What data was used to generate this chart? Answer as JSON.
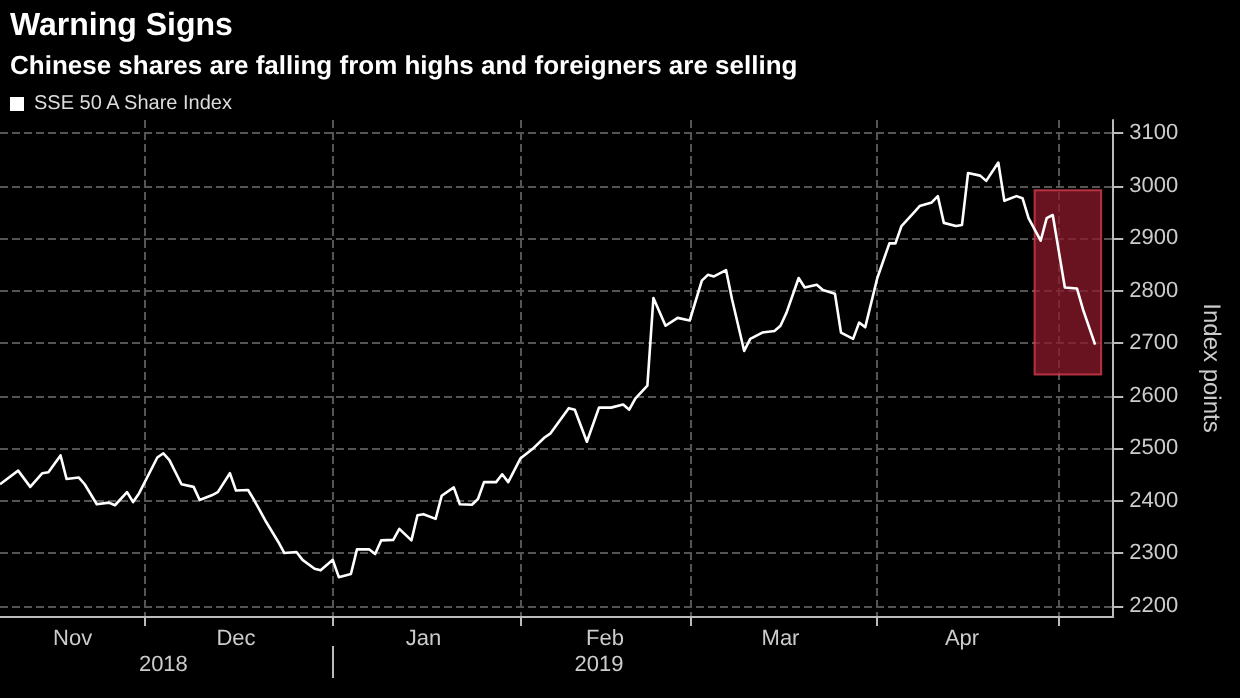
{
  "chart_data": {
    "type": "line",
    "title": "Warning Signs",
    "subtitle": "Chinese shares are falling from highs and foreigners are selling",
    "ylabel": "Index points",
    "x": [
      "2018-11-07",
      "2018-11-10",
      "2018-11-12",
      "2018-11-14",
      "2018-11-15",
      "2018-11-17",
      "2018-11-18",
      "2018-11-20",
      "2018-11-21",
      "2018-11-23",
      "2018-11-25",
      "2018-11-26",
      "2018-11-28",
      "2018-11-29",
      "2018-11-30",
      "2018-12-03",
      "2018-12-04",
      "2018-12-05",
      "2018-12-07",
      "2018-12-09",
      "2018-12-10",
      "2018-12-12",
      "2018-12-13",
      "2018-12-15",
      "2018-12-16",
      "2018-12-18",
      "2018-12-19",
      "2018-12-21",
      "2018-12-23",
      "2018-12-24",
      "2018-12-26",
      "2018-12-27",
      "2018-12-29",
      "2018-12-30",
      "2019-01-01",
      "2019-01-02",
      "2019-01-04",
      "2019-01-05",
      "2019-01-07",
      "2019-01-08",
      "2019-01-09",
      "2019-01-11",
      "2019-01-12",
      "2019-01-14",
      "2019-01-15",
      "2019-01-16",
      "2019-01-18",
      "2019-01-19",
      "2019-01-21",
      "2019-01-22",
      "2019-01-24",
      "2019-01-25",
      "2019-01-26",
      "2019-01-28",
      "2019-01-29",
      "2019-01-30",
      "2019-02-01",
      "2019-02-03",
      "2019-02-05",
      "2019-02-06",
      "2019-02-09",
      "2019-02-10",
      "2019-02-12",
      "2019-02-14",
      "2019-02-16",
      "2019-02-18",
      "2019-02-19",
      "2019-02-20",
      "2019-02-22",
      "2019-02-23",
      "2019-02-25",
      "2019-02-27",
      "2019-03-01",
      "2019-03-03",
      "2019-03-04",
      "2019-03-05",
      "2019-03-07",
      "2019-03-08",
      "2019-03-10",
      "2019-03-11",
      "2019-03-13",
      "2019-03-15",
      "2019-03-16",
      "2019-03-17",
      "2019-03-19",
      "2019-03-20",
      "2019-03-22",
      "2019-03-23",
      "2019-03-25",
      "2019-03-26",
      "2019-03-28",
      "2019-03-29",
      "2019-03-30",
      "2019-04-01",
      "2019-04-03",
      "2019-04-04",
      "2019-04-05",
      "2019-04-07",
      "2019-04-08",
      "2019-04-10",
      "2019-04-11",
      "2019-04-12",
      "2019-04-14",
      "2019-04-15",
      "2019-04-16",
      "2019-04-18",
      "2019-04-19",
      "2019-04-21",
      "2019-04-22",
      "2019-04-24",
      "2019-04-25",
      "2019-04-26",
      "2019-04-28",
      "2019-04-29",
      "2019-04-30",
      "2019-05-02",
      "2019-05-04",
      "2019-05-05",
      "2019-05-07"
    ],
    "series": [
      {
        "name": "SSE 50 A Share Index",
        "color": "#ffffff",
        "values": [
          2431,
          2457,
          2426,
          2452,
          2454,
          2486,
          2441,
          2444,
          2431,
          2393,
          2396,
          2391,
          2416,
          2397,
          2414,
          2482,
          2490,
          2477,
          2431,
          2426,
          2401,
          2410,
          2416,
          2452,
          2419,
          2420,
          2401,
          2359,
          2321,
          2300,
          2302,
          2287,
          2270,
          2267,
          2287,
          2254,
          2260,
          2307,
          2307,
          2298,
          2324,
          2325,
          2346,
          2324,
          2372,
          2374,
          2365,
          2409,
          2425,
          2393,
          2392,
          2403,
          2435,
          2435,
          2450,
          2435,
          2480,
          2498,
          2520,
          2528,
          2576,
          2573,
          2512,
          2577,
          2577,
          2583,
          2573,
          2594,
          2619,
          2786,
          2733,
          2748,
          2743,
          2819,
          2830,
          2827,
          2839,
          2783,
          2685,
          2708,
          2720,
          2723,
          2733,
          2758,
          2824,
          2806,
          2811,
          2801,
          2794,
          2720,
          2708,
          2739,
          2730,
          2824,
          2890,
          2890,
          2923,
          2948,
          2961,
          2968,
          2980,
          2929,
          2923,
          2925,
          3024,
          3019,
          3009,
          3044,
          2971,
          2980,
          2976,
          2938,
          2895,
          2938,
          2944,
          2806,
          2804,
          2764,
          2697
        ]
      }
    ],
    "xlim": [
      "2018-11-07",
      "2019-05-10"
    ],
    "xticks": [
      {
        "value": "2018-11-19",
        "label": "Nov"
      },
      {
        "value": "2018-12-01",
        "label": null
      },
      {
        "value": "2018-12-16",
        "label": "Dec"
      },
      {
        "value": "2019-01-01",
        "label": null
      },
      {
        "value": "2019-01-16",
        "label": "Jan"
      },
      {
        "value": "2019-02-01",
        "label": null
      },
      {
        "value": "2019-02-15",
        "label": "Feb"
      },
      {
        "value": "2019-03-01",
        "label": null
      },
      {
        "value": "2019-03-16",
        "label": "Mar"
      },
      {
        "value": "2019-04-01",
        "label": null
      },
      {
        "value": "2019-04-15",
        "label": "Apr"
      },
      {
        "value": "2019-05-01",
        "label": null
      }
    ],
    "x2lim": [
      "2018-11-07",
      "2019-05-10"
    ],
    "x2ticks": [
      {
        "value": "2018-12-04",
        "label": "2018"
      },
      {
        "value": "2019-01-01",
        "label": null
      },
      {
        "value": "2019-02-14",
        "label": "2019"
      }
    ],
    "ylim": [
      2180,
      3125
    ],
    "yticks": [
      2200,
      2300,
      2400,
      2500,
      2600,
      2700,
      2800,
      2900,
      3000,
      3100
    ],
    "bands": [
      {
        "axis": "x",
        "from": "2019-04-27",
        "to": "2019-05-08",
        "color": "#8b1a2a"
      }
    ],
    "grid": true,
    "legend": "top left",
    "marker": "none",
    "line_style": "solid"
  }
}
